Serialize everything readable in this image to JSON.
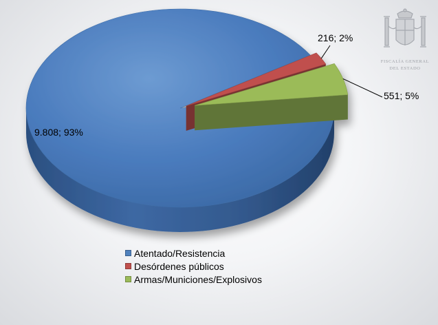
{
  "chart_data": {
    "type": "pie",
    "style": "3d",
    "slices": [
      {
        "label": "Atentado/Resistencia",
        "value": 9808,
        "percent": 93,
        "data_label": "9.808; 93%",
        "color": "#4f81bd"
      },
      {
        "label": "Desórdenes públicos",
        "value": 216,
        "percent": 2,
        "data_label": "216; 2%",
        "color": "#c0504d"
      },
      {
        "label": "Armas/Municiones/Explosivos",
        "value": 551,
        "percent": 5,
        "data_label": "551; 5%",
        "color": "#9bbb59"
      }
    ],
    "legend_position": "bottom",
    "title": ""
  },
  "logo": {
    "line1": "FISCALÍA GENERAL",
    "line2": "DEL ESTADO"
  }
}
